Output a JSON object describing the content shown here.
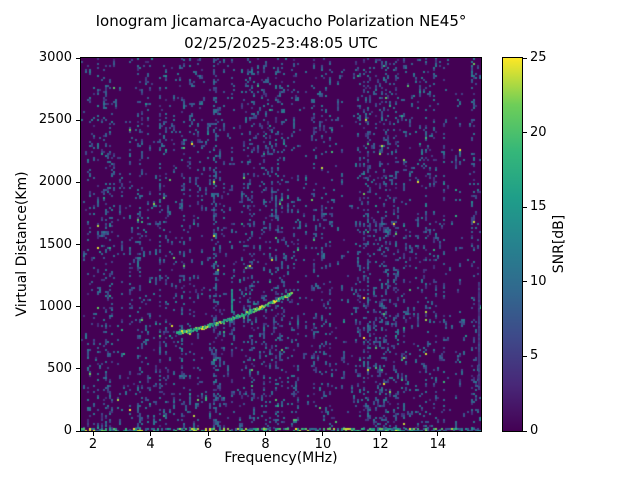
{
  "figure_colors": {
    "background": "#ffffff",
    "text": "#000000",
    "axes_edge": "#000000"
  },
  "chart_data": {
    "type": "heatmap",
    "title_line1": "Ionogram Jicamarca-Ayacucho Polarization NE45°",
    "title_line2": "02/25/2025-23:48:05 UTC",
    "xlabel": "Frequency(MHz)",
    "ylabel": "Virtual Distance(Km)",
    "xlim": [
      1.58,
      15.5
    ],
    "ylim": [
      0,
      3000
    ],
    "x_ticks": [
      2,
      4,
      6,
      8,
      10,
      12,
      14
    ],
    "y_ticks": [
      0,
      500,
      1000,
      1500,
      2000,
      2500,
      3000
    ],
    "grid": false,
    "colorbar": {
      "label": "SNR[dB]",
      "range": [
        0,
        25
      ],
      "ticks": [
        0,
        5,
        10,
        15,
        20,
        25
      ],
      "colormap": "viridis",
      "stops": [
        "#440154",
        "#482878",
        "#3e4989",
        "#31688e",
        "#26828e",
        "#1f9e89",
        "#35b779",
        "#6ece58",
        "#fde725"
      ]
    },
    "background_snr_db": 0,
    "noise": {
      "seed": 20250225,
      "cols": 200,
      "rows": 187,
      "base_density": 0.095,
      "run_continue_prob": 0.38,
      "snr_typical": [
        3.5,
        12
      ],
      "bright_fraction": 0.03,
      "snr_bright": [
        13,
        25
      ],
      "quiet_bands": [
        [
          2.75,
          3.25
        ],
        [
          9.2,
          9.6
        ],
        [
          10.35,
          11.2
        ],
        [
          14.35,
          15.15
        ]
      ],
      "dense_bands": [
        [
          4.3,
          4.5
        ],
        [
          6.1,
          6.3
        ],
        [
          11.4,
          11.7
        ],
        [
          12.1,
          12.25
        ],
        [
          15.3,
          15.5
        ]
      ]
    },
    "trace": {
      "name": "F-region echo trace",
      "snr_range": [
        13,
        25
      ],
      "points": [
        [
          4.9,
          792
        ],
        [
          5.15,
          804
        ],
        [
          5.4,
          817
        ],
        [
          5.65,
          832
        ],
        [
          5.9,
          847
        ],
        [
          6.15,
          863
        ],
        [
          6.4,
          881
        ],
        [
          6.65,
          899
        ],
        [
          6.9,
          919
        ],
        [
          7.15,
          940
        ],
        [
          7.4,
          962
        ],
        [
          7.65,
          985
        ],
        [
          7.9,
          1009
        ],
        [
          8.15,
          1034
        ],
        [
          8.4,
          1060
        ],
        [
          8.65,
          1088
        ],
        [
          8.9,
          1117
        ]
      ]
    },
    "features": [
      {
        "type": "vertical-streak",
        "freq_mhz": 5.05,
        "vd_km": [
          500,
          745
        ],
        "snr_db": 12,
        "dashed": true
      },
      {
        "type": "vertical-streak",
        "freq_mhz": 6.8,
        "vd_km": [
          950,
          1140
        ],
        "snr_db": 14,
        "dashed": false
      },
      {
        "type": "vertical-streak",
        "freq_mhz": 15.38,
        "vd_km": [
          330,
          1200
        ],
        "snr_db": 5,
        "dashed": false
      },
      {
        "type": "ground-clutter-row",
        "vd_km": [
          0,
          20
        ],
        "density": 0.6,
        "snr_db": [
          6,
          25
        ]
      }
    ]
  }
}
